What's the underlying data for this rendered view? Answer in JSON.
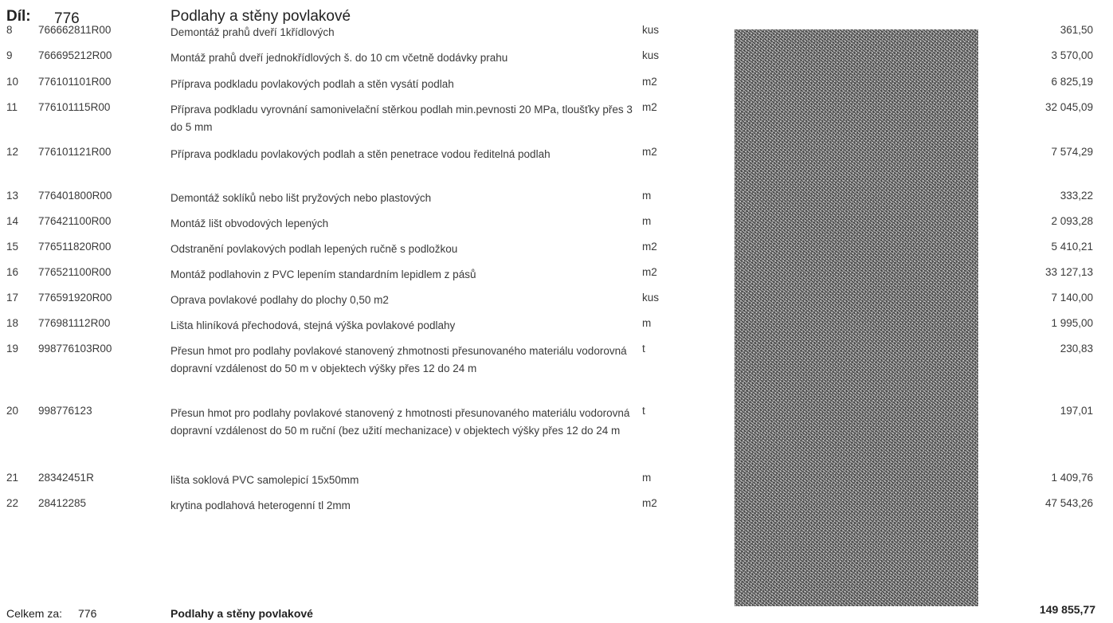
{
  "header": {
    "label": "Díl:",
    "code": "776",
    "title": "Podlahy a stěny povlakové"
  },
  "rows": [
    {
      "no": "8",
      "code": "766662811R00",
      "desc": "Demontáž prahů dveří 1křídlových",
      "unit": "kus",
      "price": "361,50"
    },
    {
      "no": "9",
      "code": "766695212R00",
      "desc": "Montáž prahů dveří jednokřídlových š. do 10 cm včetně dodávky prahu",
      "unit": "kus",
      "price": "3 570,00"
    },
    {
      "no": "10",
      "code": "776101101R00",
      "desc": "Příprava podkladu povlakových podlah a stěn vysátí podlah",
      "unit": "m2",
      "price": "6 825,19"
    },
    {
      "no": "11",
      "code": "776101115R00",
      "desc": "Příprava podkladu vyrovnání samonivelační stěrkou podlah min.pevnosti 20 MPa, tloušťky přes 3 do 5 mm",
      "unit": "m2",
      "price": "32 045,09"
    },
    {
      "no": "12",
      "code": "776101121R00",
      "desc": "Příprava podkladu povlakových podlah a stěn penetrace vodou ředitelná podlah",
      "unit": "m2",
      "price": "7 574,29"
    },
    {
      "no": "13",
      "code": "776401800R00",
      "desc": "Demontáž soklíků nebo lišt pryžových nebo plastových",
      "unit": "m",
      "price": "333,22"
    },
    {
      "no": "14",
      "code": "776421100R00",
      "desc": "Montáž lišt obvodových lepených",
      "unit": "m",
      "price": "2 093,28"
    },
    {
      "no": "15",
      "code": "776511820R00",
      "desc": "Odstranění povlakových podlah lepených ručně s podložkou",
      "unit": "m2",
      "price": "5 410,21"
    },
    {
      "no": "16",
      "code": "776521100R00",
      "desc": "Montáž podlahovin z PVC lepením standardním lepidlem z pásů",
      "unit": "m2",
      "price": "33 127,13"
    },
    {
      "no": "17",
      "code": "776591920R00",
      "desc": "Oprava povlakové podlahy do plochy 0,50 m2",
      "unit": "kus",
      "price": "7 140,00"
    },
    {
      "no": "18",
      "code": "776981112R00",
      "desc": "Lišta hliníková přechodová, stejná výška povlakové podlahy",
      "unit": "m",
      "price": "1 995,00"
    },
    {
      "no": "19",
      "code": "998776103R00",
      "desc": "Přesun hmot pro podlahy povlakové stanovený zhmotnosti přesunovaného materiálu vodorovná dopravní vzdálenost do 50 m v objektech výšky přes 12 do 24 m",
      "unit": "t",
      "price": "230,83"
    },
    {
      "no": "20",
      "code": "998776123",
      "desc": "Přesun hmot pro podlahy povlakové stanovený z hmotnosti přesunovaného materiálu vodorovná dopravní vzdálenost do 50 m ruční (bez užití mechanizace) v objektech výšky přes 12 do 24 m",
      "unit": "t",
      "price": "197,01"
    },
    {
      "no": "21",
      "code": "28342451R",
      "desc": "lišta soklová PVC samolepicí 15x50mm",
      "unit": "m",
      "price": "1 409,76"
    },
    {
      "no": "22",
      "code": "28412285",
      "desc": "krytina podlahová heterogenní tl 2mm",
      "unit": "m2",
      "price": "47 543,26"
    }
  ],
  "footer": {
    "label": "Celkem za:",
    "code": "776",
    "title": "Podlahy a stěny povlakové",
    "total": "149 855,77"
  }
}
